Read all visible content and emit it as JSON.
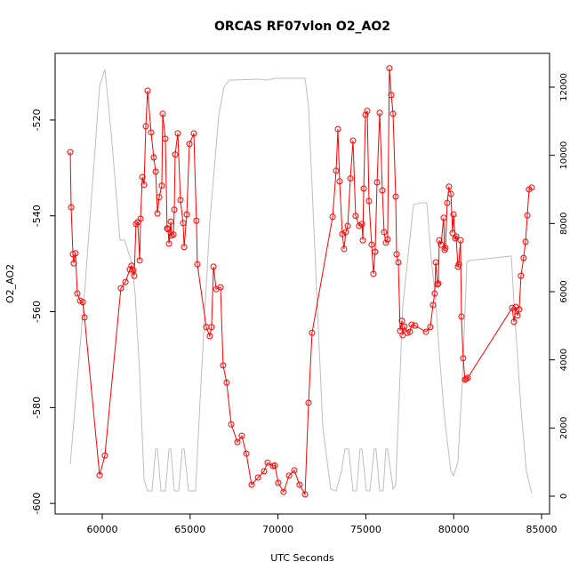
{
  "chart_data": {
    "type": "line",
    "title": "ORCAS RF07vlon O2_AO2",
    "xlabel": "UTC Seconds",
    "ylabel": "O2_AO2",
    "xlim": [
      57318,
      85455
    ],
    "ylim": [
      -602.2,
      -506.1
    ],
    "y2lim": [
      -522,
      12991
    ],
    "xticks": [
      60000,
      65000,
      70000,
      75000,
      80000,
      85000
    ],
    "yticks": [
      -600,
      -580,
      -560,
      -540,
      -520
    ],
    "y2ticks": [
      0,
      2000,
      4000,
      6000,
      8000,
      10000,
      12000
    ],
    "series": [
      {
        "color": "#bebebe",
        "axis": "y2",
        "x": [
          58180,
          58990,
          59850,
          60150,
          60510,
          61010,
          61270,
          61670,
          61870,
          62130,
          62380,
          62580,
          62830,
          63040,
          63140,
          63340,
          63590,
          63800,
          63900,
          64100,
          64350,
          64550,
          64660,
          64910,
          65310,
          65620,
          66120,
          66630,
          66930,
          67240,
          67590,
          68860,
          69360,
          69870,
          70880,
          71540,
          71740,
          72140,
          72550,
          73000,
          73310,
          73610,
          73810,
          74020,
          74270,
          74470,
          74670,
          74780,
          75030,
          75230,
          75480,
          75580,
          75790,
          75990,
          76140,
          76240,
          76550,
          76700,
          77100,
          77710,
          78220,
          78470,
          78720,
          78980,
          79230,
          79480,
          79840,
          79990,
          80240,
          80490,
          80750,
          80850,
          83280,
          83430,
          83830,
          84140,
          84440
        ],
        "values": [
          939,
          5949,
          12027,
          12523,
          10645,
          7514,
          7514,
          6862,
          5949,
          3600,
          470,
          157,
          157,
          1383,
          1383,
          157,
          157,
          1383,
          1383,
          157,
          157,
          1383,
          1383,
          157,
          157,
          3340,
          8036,
          11167,
          12001,
          12210,
          12210,
          12236,
          12210,
          12262,
          12262,
          12262,
          11427,
          6731,
          2035,
          209,
          157,
          731,
          1383,
          1383,
          157,
          157,
          1383,
          1383,
          157,
          157,
          1383,
          1383,
          157,
          157,
          1383,
          1383,
          209,
          339,
          5557,
          8558,
          8610,
          8610,
          6992,
          5688,
          3861,
          2296,
          731,
          600,
          991,
          3340,
          6862,
          6914,
          7044,
          5688,
          2557,
          731,
          78
        ]
      },
      {
        "color": "#ff0000",
        "marker": "circle",
        "x": [
          58180,
          58230,
          58330,
          58380,
          58480,
          58580,
          58740,
          58890,
          58990,
          59850,
          60150,
          61060,
          61320,
          61570,
          61670,
          61770,
          61820,
          61920,
          62020,
          62130,
          62180,
          62280,
          62380,
          62480,
          62580,
          62780,
          62930,
          63040,
          63140,
          63240,
          63390,
          63440,
          63590,
          63690,
          63740,
          63800,
          63900,
          63950,
          64050,
          64100,
          64150,
          64300,
          64450,
          64600,
          64660,
          64810,
          64960,
          65210,
          65360,
          65410,
          65920,
          66120,
          66220,
          66330,
          66480,
          66730,
          66880,
          67080,
          67340,
          67690,
          67940,
          68200,
          68500,
          68860,
          69210,
          69410,
          69720,
          69820,
          70020,
          70320,
          70630,
          70930,
          71230,
          71540,
          71740,
          71940,
          73110,
          73310,
          73410,
          73510,
          73660,
          73760,
          73860,
          73970,
          74120,
          74270,
          74420,
          74620,
          74780,
          74830,
          74880,
          74980,
          75080,
          75180,
          75330,
          75430,
          75530,
          75640,
          75790,
          75940,
          76040,
          76140,
          76240,
          76340,
          76450,
          76550,
          76700,
          76750,
          76850,
          76950,
          77050,
          77100,
          77200,
          77360,
          77510,
          77610,
          77810,
          78420,
          78670,
          78820,
          78920,
          78980,
          79080,
          79130,
          79180,
          79280,
          79430,
          79480,
          79530,
          79630,
          79730,
          79840,
          79940,
          79990,
          80090,
          80140,
          80240,
          80290,
          80390,
          80440,
          80540,
          80640,
          80700,
          80800,
          83330,
          83430,
          83530,
          83630,
          83730,
          83830,
          83980,
          84090,
          84190,
          84290,
          84440
        ],
        "values": [
          -526.7,
          -538.2,
          -548.0,
          -549.9,
          -547.8,
          -556.2,
          -557.7,
          -558.0,
          -561.2,
          -594.1,
          -590.0,
          -555.1,
          -553.8,
          -551.2,
          -550.4,
          -551.4,
          -552.5,
          -541.7,
          -541.3,
          -549.3,
          -540.6,
          -531.9,
          -533.5,
          -521.3,
          -513.9,
          -522.6,
          -527.8,
          -530.8,
          -539.5,
          -536.1,
          -533.7,
          -518.7,
          -523.9,
          -542.6,
          -542.8,
          -545.8,
          -541.2,
          -544.1,
          -543.9,
          -538.7,
          -527.2,
          -522.8,
          -536.7,
          -541.5,
          -546.5,
          -539.7,
          -525.0,
          -522.8,
          -541.0,
          -550.1,
          -563.2,
          -565.1,
          -563.2,
          -550.6,
          -555.3,
          -554.9,
          -571.2,
          -574.8,
          -583.5,
          -587.2,
          -585.9,
          -589.6,
          -596.1,
          -594.6,
          -593.3,
          -591.5,
          -592.2,
          -592.1,
          -595.7,
          -597.6,
          -594.2,
          -593.1,
          -596.1,
          -598.1,
          -579.0,
          -564.4,
          -540.2,
          -530.6,
          -521.9,
          -532.8,
          -543.8,
          -546.9,
          -543.4,
          -542.1,
          -532.2,
          -524.3,
          -540.0,
          -542.1,
          -541.7,
          -545.1,
          -534.3,
          -518.9,
          -518.1,
          -536.9,
          -546.0,
          -552.1,
          -547.5,
          -533.0,
          -518.5,
          -534.7,
          -543.4,
          -545.6,
          -544.9,
          -509.2,
          -514.8,
          -518.7,
          -536.0,
          -548.0,
          -549.7,
          -564.0,
          -561.9,
          -564.9,
          -563.1,
          -564.4,
          -564.2,
          -562.7,
          -562.9,
          -564.2,
          -563.2,
          -558.6,
          -556.2,
          -549.7,
          -554.3,
          -554.1,
          -545.1,
          -546.0,
          -540.4,
          -547.1,
          -546.7,
          -537.3,
          -533.9,
          -535.4,
          -543.6,
          -539.7,
          -544.7,
          -544.3,
          -550.6,
          -550.1,
          -545.1,
          -561.0,
          -569.7,
          -574.2,
          -574.0,
          -573.8,
          -559.2,
          -562.1,
          -559.0,
          -560.8,
          -559.5,
          -552.5,
          -548.8,
          -545.4,
          -539.9,
          -534.5,
          -534.1
        ]
      }
    ]
  }
}
